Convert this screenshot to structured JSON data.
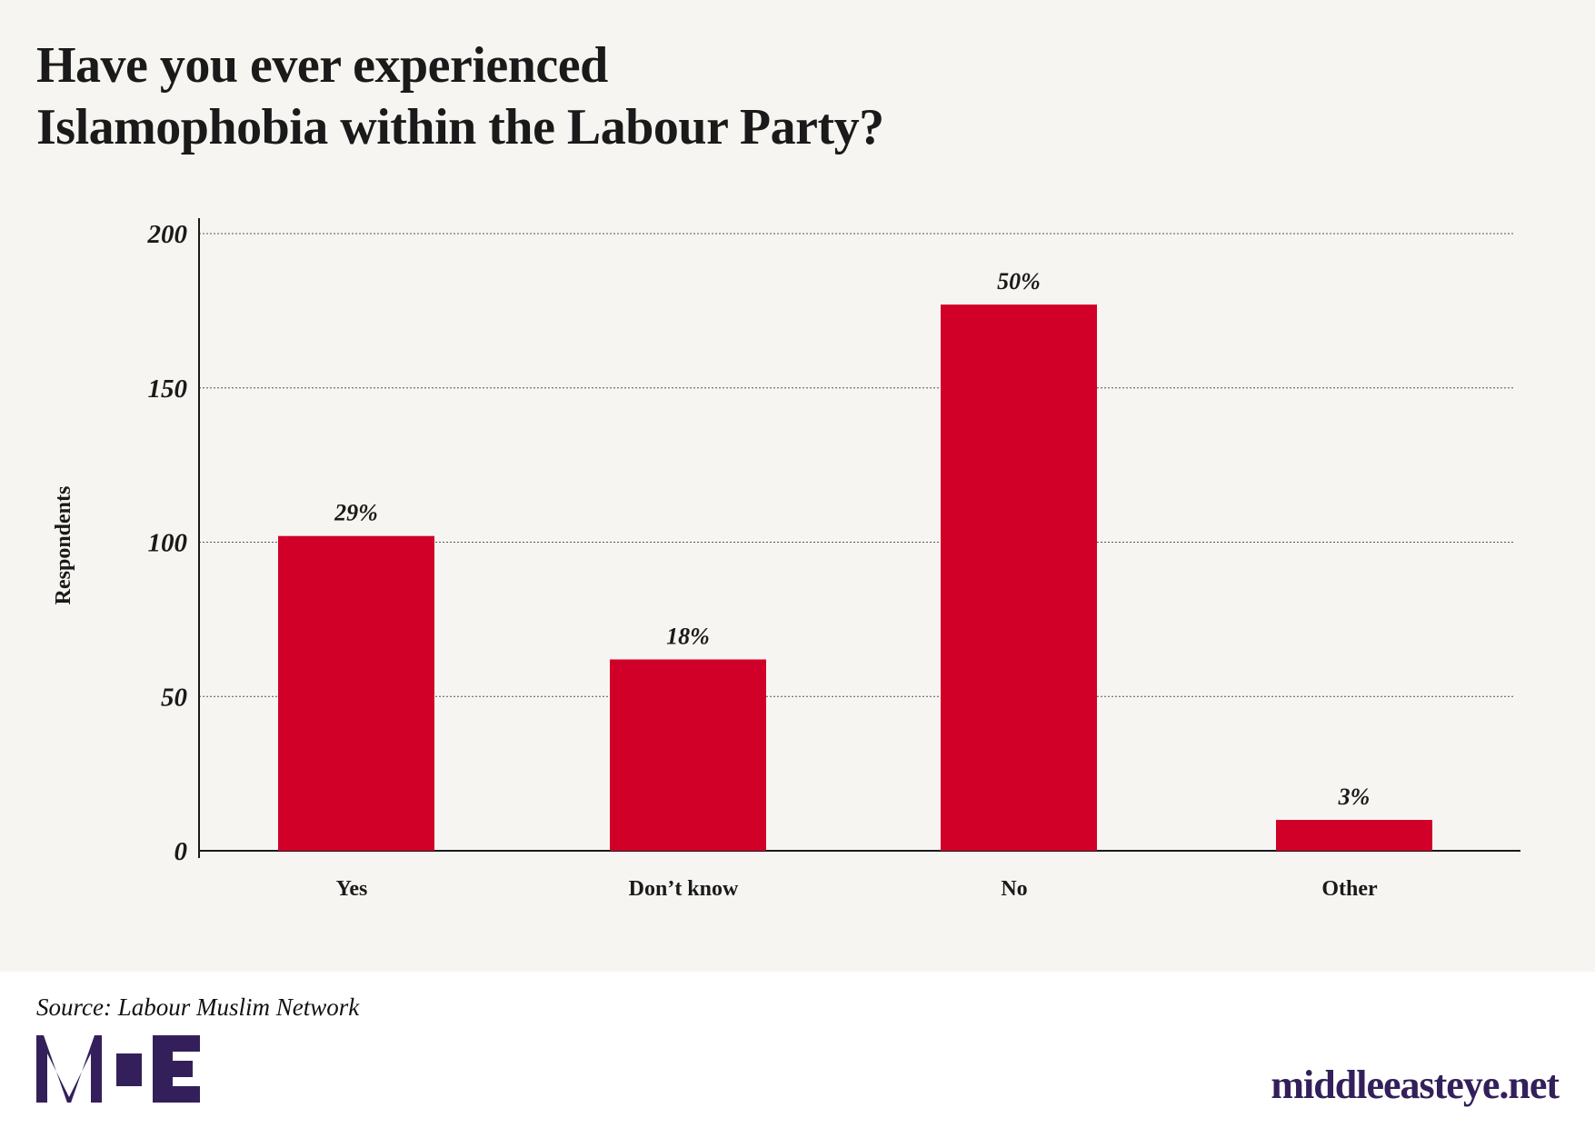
{
  "chart_data": {
    "type": "bar",
    "title": "Have you ever experienced Islamophobia within the Labour Party?",
    "title_lines": [
      "Have you ever experienced",
      "Islamophobia within the Labour Party?"
    ],
    "categories": [
      "Yes",
      "Don’t know",
      "No",
      "Other"
    ],
    "values": [
      102,
      62,
      177,
      10
    ],
    "data_labels": [
      "29%",
      "18%",
      "50%",
      "3%"
    ],
    "xlabel": "",
    "ylabel": "Respondents",
    "ylim": [
      0,
      200
    ],
    "yticks": [
      "0",
      "50",
      "100",
      "150",
      "200"
    ],
    "grid": true,
    "bar_color": "#d10028"
  },
  "source": "Source: Labour Muslim Network",
  "logo": "MEE",
  "site": "middleeasteye.net",
  "brand_color": "#33205b"
}
